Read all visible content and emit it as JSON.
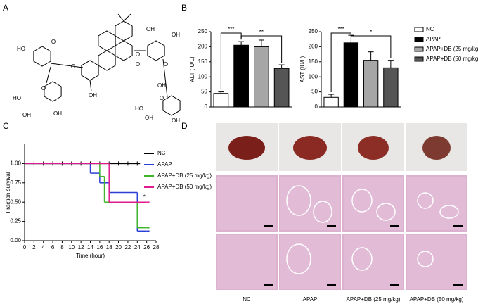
{
  "panel_labels": [
    "A",
    "B",
    "C",
    "D"
  ],
  "structure": {
    "atoms": [
      "HO",
      "O",
      "O",
      "O",
      "HO",
      "OH",
      "OH",
      "OH",
      "O",
      "O",
      "OH",
      "OH",
      "O",
      "OH",
      "O",
      "OH",
      "OH",
      "HO"
    ]
  },
  "chart_data": [
    {
      "type": "bar",
      "ylabel": "ALT (IU/L)",
      "values": [
        45,
        205,
        200,
        128
      ],
      "errors": [
        5,
        12,
        22,
        12
      ],
      "colors": [
        "#ffffff",
        "#000000",
        "#a6a6a6",
        "#555555"
      ],
      "ylim": [
        0,
        250
      ],
      "yticks": [
        0,
        50,
        100,
        150,
        200,
        250
      ],
      "significance": [
        "***",
        "**"
      ]
    },
    {
      "type": "bar",
      "ylabel": "AST (IU/L)",
      "values": [
        32,
        213,
        155,
        130
      ],
      "errors": [
        10,
        25,
        28,
        25
      ],
      "categories": [
        "NC",
        "APAP",
        "APAP+DB (25 mg/kg)",
        "APAP+DB (50 mg/kg)"
      ],
      "colors": [
        "#ffffff",
        "#000000",
        "#a6a6a6",
        "#555555"
      ],
      "ylim": [
        0,
        250
      ],
      "yticks": [
        0,
        50,
        100,
        150,
        200,
        250
      ],
      "significance": [
        "***",
        "*"
      ]
    },
    {
      "type": "step",
      "xlabel": "Time (hour)",
      "ylabel": "Fraction survival",
      "xlim": [
        0,
        28
      ],
      "xticks": [
        0,
        2,
        4,
        6,
        8,
        10,
        12,
        14,
        16,
        18,
        20,
        22,
        24,
        26,
        28
      ],
      "ylim": [
        0,
        1.25
      ],
      "yticks": [
        {
          "value": 0,
          "label": "0.00"
        },
        {
          "value": 0.25,
          "label": "0.25"
        },
        {
          "value": 0.5,
          "label": "0.50"
        },
        {
          "value": 0.75,
          "label": "0.75"
        },
        {
          "value": 1,
          "label": "1.00"
        }
      ],
      "annotation": "*",
      "series": [
        {
          "name": "NC",
          "color": "#000000",
          "x": [
            0,
            2,
            4,
            6,
            8,
            10,
            12,
            14,
            16,
            18,
            20,
            22,
            24
          ],
          "values": [
            1,
            1,
            1,
            1,
            1,
            1,
            1,
            1,
            1,
            1,
            1,
            1,
            1
          ]
        },
        {
          "name": "APAP",
          "color": "#2a3fd6",
          "x": [
            0,
            14,
            16,
            18,
            24,
            26
          ],
          "values": [
            1,
            0.875,
            0.75,
            0.625,
            0.125,
            0.125
          ]
        },
        {
          "name": "APAP+DB (25 mg/kg)",
          "color": "#3fb62a",
          "x": [
            0,
            16,
            17,
            24,
            26
          ],
          "values": [
            1,
            0.833,
            0.5,
            0.167,
            0.167
          ]
        },
        {
          "name": "APAP+DB (50 mg/kg)",
          "color": "#e01a8c",
          "x": [
            0,
            18,
            26
          ],
          "values": [
            1,
            0.5,
            0.5
          ]
        }
      ]
    }
  ]
}
